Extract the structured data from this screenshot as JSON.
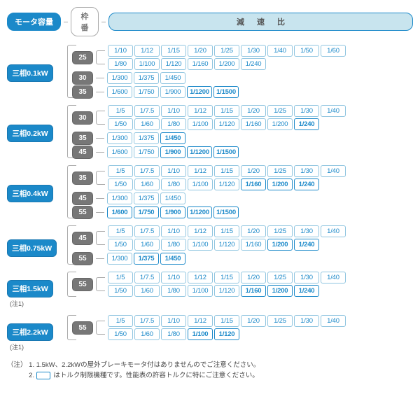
{
  "header": {
    "motor_capacity": "モータ容量",
    "frame_no": "枠番",
    "reduction_ratio": "減速比"
  },
  "colors": {
    "blue": "#1b89c9",
    "light_blue": "#c8e4ee",
    "gray": "#777777"
  },
  "groups": [
    {
      "label": "三相0.1kW",
      "note": null,
      "frames": [
        {
          "num": "25",
          "rows": [
            {
              "cells": [
                "1/10",
                "1/12",
                "1/15",
                "1/20",
                "1/25",
                "1/30",
                "1/40",
                "1/50",
                "1/60"
              ],
              "torque": []
            },
            {
              "cells": [
                "1/80",
                "1/100",
                "1/120",
                "1/160",
                "1/200",
                "1/240"
              ],
              "torque": []
            }
          ]
        },
        {
          "num": "30",
          "rows": [
            {
              "cells": [
                "1/300",
                "1/375",
                "1/450"
              ],
              "torque": []
            }
          ]
        },
        {
          "num": "35",
          "rows": [
            {
              "cells": [
                "1/600",
                "1/750",
                "1/900",
                "1/1200",
                "1/1500"
              ],
              "torque": [
                3,
                4
              ]
            }
          ]
        }
      ]
    },
    {
      "label": "三相0.2kW",
      "note": null,
      "frames": [
        {
          "num": "30",
          "rows": [
            {
              "cells": [
                "1/5",
                "1/7.5",
                "1/10",
                "1/12",
                "1/15",
                "1/20",
                "1/25",
                "1/30",
                "1/40"
              ],
              "torque": []
            },
            {
              "cells": [
                "1/50",
                "1/60",
                "1/80",
                "1/100",
                "1/120",
                "1/160",
                "1/200",
                "1/240"
              ],
              "torque": [
                7
              ]
            }
          ]
        },
        {
          "num": "35",
          "rows": [
            {
              "cells": [
                "1/300",
                "1/375",
                "1/450"
              ],
              "torque": [
                2
              ]
            }
          ]
        },
        {
          "num": "45",
          "rows": [
            {
              "cells": [
                "1/600",
                "1/750",
                "1/900",
                "1/1200",
                "1/1500"
              ],
              "torque": [
                2,
                3,
                4
              ]
            }
          ]
        }
      ]
    },
    {
      "label": "三相0.4kW",
      "note": null,
      "frames": [
        {
          "num": "35",
          "rows": [
            {
              "cells": [
                "1/5",
                "1/7.5",
                "1/10",
                "1/12",
                "1/15",
                "1/20",
                "1/25",
                "1/30",
                "1/40"
              ],
              "torque": []
            },
            {
              "cells": [
                "1/50",
                "1/60",
                "1/80",
                "1/100",
                "1/120",
                "1/160",
                "1/200",
                "1/240"
              ],
              "torque": [
                5,
                6,
                7
              ]
            }
          ]
        },
        {
          "num": "45",
          "rows": [
            {
              "cells": [
                "1/300",
                "1/375",
                "1/450"
              ],
              "torque": []
            }
          ]
        },
        {
          "num": "55",
          "rows": [
            {
              "cells": [
                "1/600",
                "1/750",
                "1/900",
                "1/1200",
                "1/1500"
              ],
              "torque": [
                0,
                1,
                2,
                3,
                4
              ]
            }
          ]
        }
      ]
    },
    {
      "label": "三相0.75kW",
      "note": null,
      "frames": [
        {
          "num": "45",
          "rows": [
            {
              "cells": [
                "1/5",
                "1/7.5",
                "1/10",
                "1/12",
                "1/15",
                "1/20",
                "1/25",
                "1/30",
                "1/40"
              ],
              "torque": []
            },
            {
              "cells": [
                "1/50",
                "1/60",
                "1/80",
                "1/100",
                "1/120",
                "1/160",
                "1/200",
                "1/240"
              ],
              "torque": [
                6,
                7
              ]
            }
          ]
        },
        {
          "num": "55",
          "rows": [
            {
              "cells": [
                "1/300",
                "1/375",
                "1/450"
              ],
              "torque": [
                1,
                2
              ]
            }
          ]
        }
      ]
    },
    {
      "label": "三相1.5kW",
      "note": "(注1)",
      "frames": [
        {
          "num": "55",
          "rows": [
            {
              "cells": [
                "1/5",
                "1/7.5",
                "1/10",
                "1/12",
                "1/15",
                "1/20",
                "1/25",
                "1/30",
                "1/40"
              ],
              "torque": []
            },
            {
              "cells": [
                "1/50",
                "1/60",
                "1/80",
                "1/100",
                "1/120",
                "1/160",
                "1/200",
                "1/240"
              ],
              "torque": [
                5,
                6,
                7
              ]
            }
          ]
        }
      ]
    },
    {
      "label": "三相2.2kW",
      "note": "(注1)",
      "frames": [
        {
          "num": "55",
          "rows": [
            {
              "cells": [
                "1/5",
                "1/7.5",
                "1/10",
                "1/12",
                "1/15",
                "1/20",
                "1/25",
                "1/30",
                "1/40"
              ],
              "torque": []
            },
            {
              "cells": [
                "1/50",
                "1/60",
                "1/80",
                "1/100",
                "1/120"
              ],
              "torque": [
                3,
                4
              ]
            }
          ]
        }
      ]
    }
  ],
  "footnotes": {
    "prefix": "（注）",
    "line1": "1. 1.5kW、2.2kWの屋外ブレーキモータ付はありませんのでご注意ください。",
    "line2_a": "2. ",
    "line2_b": " はトルク制限機種です。性能表の許容トルクに特にご注意ください。"
  }
}
